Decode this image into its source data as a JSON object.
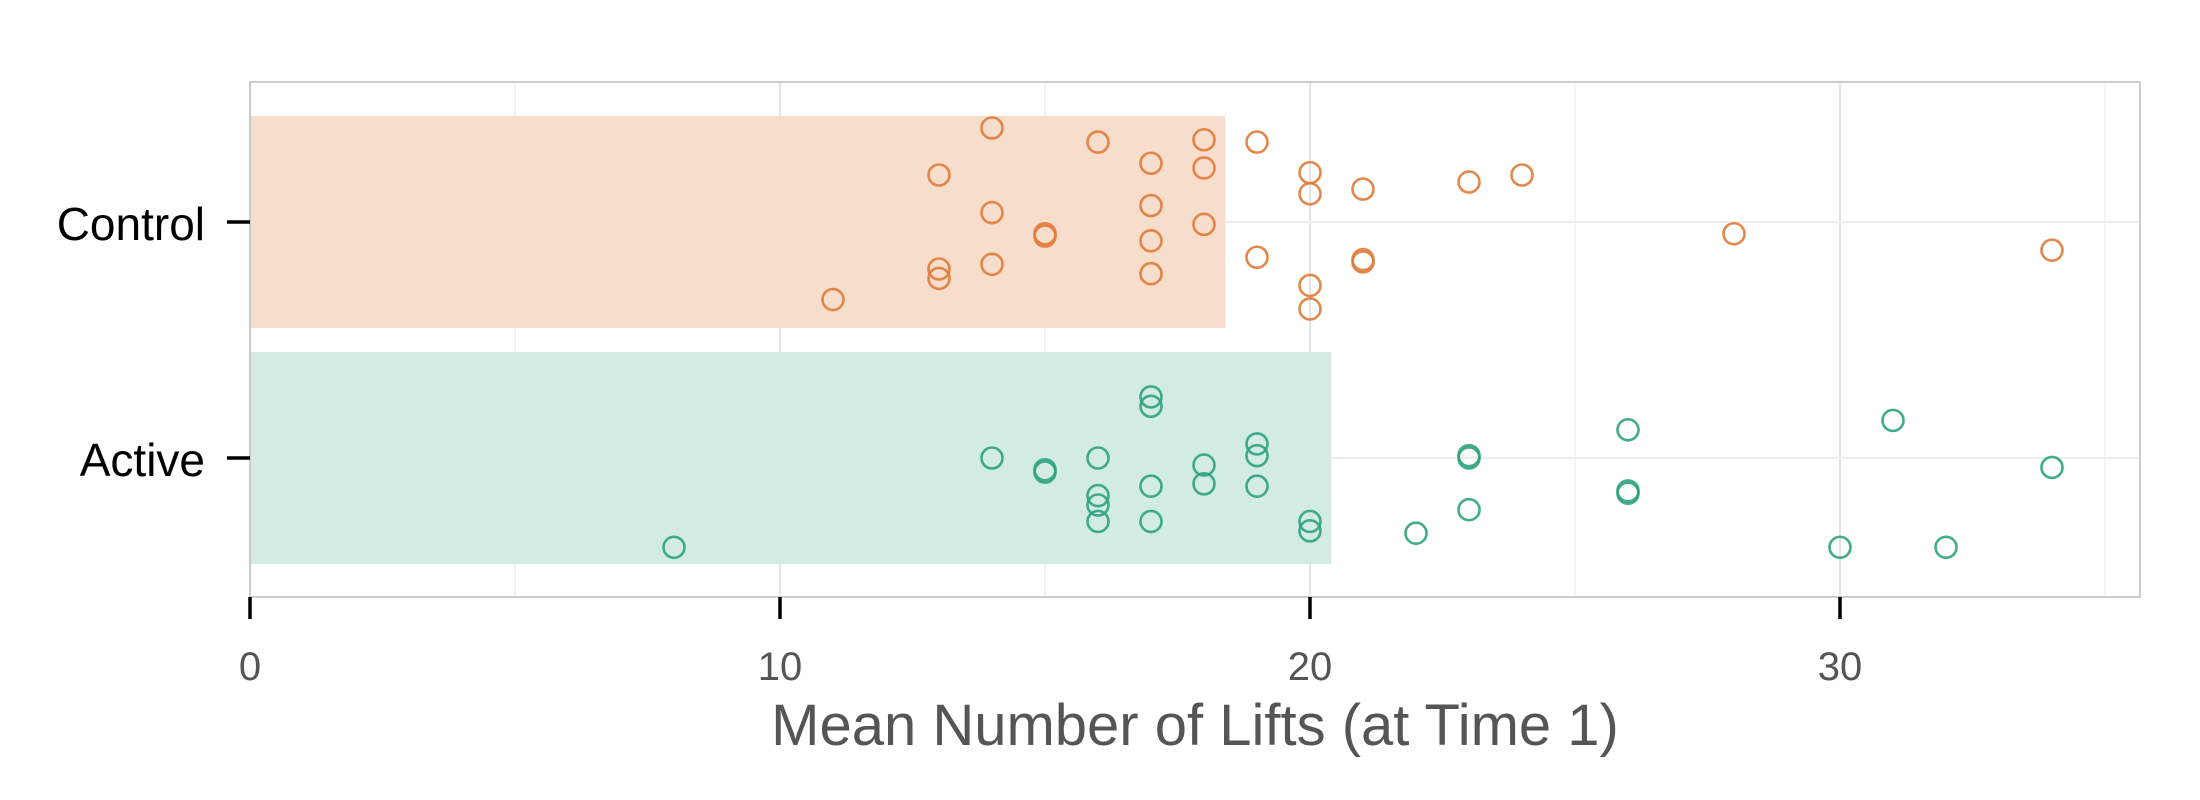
{
  "chart_data": {
    "type": "bar",
    "orientation": "horizontal",
    "title": "",
    "xlabel": "Mean Number of Lifts (at Time 1)",
    "ylabel": "",
    "xlim": [
      0,
      35.6
    ],
    "x_ticks": [
      0,
      10,
      20,
      30
    ],
    "grid": true,
    "categories": [
      "Control",
      "Active"
    ],
    "values": [
      18.4,
      20.4
    ],
    "colors": {
      "Control": "#E07B39",
      "Control_bar": "#F7DDCB",
      "Active": "#2FA37F",
      "Active_bar": "#D2EBE3"
    },
    "points": {
      "Control": [
        {
          "x": 14,
          "y": 0.4
        },
        {
          "x": 16,
          "y": 0.34
        },
        {
          "x": 17,
          "y": 0.25
        },
        {
          "x": 18,
          "y": 0.35
        },
        {
          "x": 19,
          "y": 0.34
        },
        {
          "x": 13,
          "y": 0.2
        },
        {
          "x": 18,
          "y": 0.23
        },
        {
          "x": 20,
          "y": 0.21
        },
        {
          "x": 20,
          "y": 0.12
        },
        {
          "x": 21,
          "y": 0.14
        },
        {
          "x": 23,
          "y": 0.17
        },
        {
          "x": 24,
          "y": 0.2
        },
        {
          "x": 14,
          "y": 0.04
        },
        {
          "x": 17,
          "y": 0.07
        },
        {
          "x": 18,
          "y": -0.01
        },
        {
          "x": 15,
          "y": -0.05
        },
        {
          "x": 15,
          "y": -0.06
        },
        {
          "x": 17,
          "y": -0.08
        },
        {
          "x": 28,
          "y": -0.05
        },
        {
          "x": 34,
          "y": -0.12
        },
        {
          "x": 19,
          "y": -0.15
        },
        {
          "x": 21,
          "y": -0.17
        },
        {
          "x": 21,
          "y": -0.16
        },
        {
          "x": 14,
          "y": -0.18
        },
        {
          "x": 13,
          "y": -0.2
        },
        {
          "x": 13,
          "y": -0.24
        },
        {
          "x": 17,
          "y": -0.22
        },
        {
          "x": 20,
          "y": -0.27
        },
        {
          "x": 11,
          "y": -0.33
        },
        {
          "x": 20,
          "y": -0.37
        }
      ],
      "Active": [
        {
          "x": 17,
          "y": 0.26
        },
        {
          "x": 17,
          "y": 0.22
        },
        {
          "x": 31,
          "y": 0.16
        },
        {
          "x": 26,
          "y": 0.12
        },
        {
          "x": 19,
          "y": 0.06
        },
        {
          "x": 19,
          "y": 0.01
        },
        {
          "x": 14,
          "y": 0.0
        },
        {
          "x": 16,
          "y": 0.0
        },
        {
          "x": 23,
          "y": 0.01
        },
        {
          "x": 23,
          "y": 0.0
        },
        {
          "x": 18,
          "y": -0.03
        },
        {
          "x": 34,
          "y": -0.04
        },
        {
          "x": 15,
          "y": -0.05
        },
        {
          "x": 15,
          "y": -0.06
        },
        {
          "x": 18,
          "y": -0.11
        },
        {
          "x": 17,
          "y": -0.12
        },
        {
          "x": 19,
          "y": -0.12
        },
        {
          "x": 26,
          "y": -0.14
        },
        {
          "x": 26,
          "y": -0.15
        },
        {
          "x": 16,
          "y": -0.16
        },
        {
          "x": 16,
          "y": -0.2
        },
        {
          "x": 23,
          "y": -0.22
        },
        {
          "x": 16,
          "y": -0.27
        },
        {
          "x": 17,
          "y": -0.27
        },
        {
          "x": 20,
          "y": -0.27
        },
        {
          "x": 20,
          "y": -0.31
        },
        {
          "x": 22,
          "y": -0.32
        },
        {
          "x": 8,
          "y": -0.38
        },
        {
          "x": 30,
          "y": -0.38
        },
        {
          "x": 32,
          "y": -0.38
        }
      ]
    }
  }
}
